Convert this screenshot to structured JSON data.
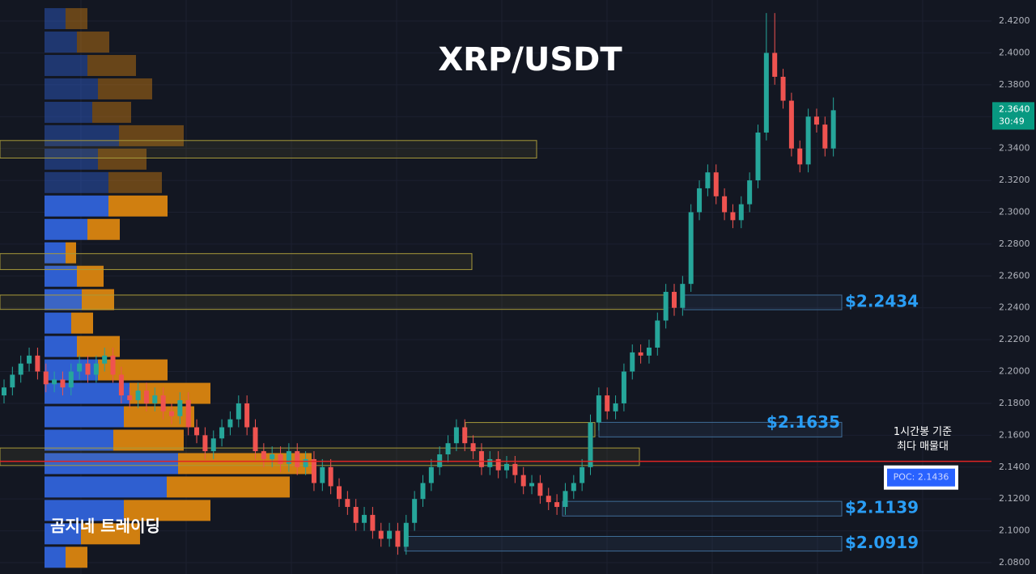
{
  "chart_data": {
    "type": "candlestick",
    "title": "XRP/USDT",
    "watermark": "곰지네 트레이딩",
    "up_color": "#26a69a",
    "down_color": "#ef5350",
    "ylim": [
      2.0729,
      2.4332
    ],
    "yticks": [
      {
        "value": 2.08,
        "label": "2.0800"
      },
      {
        "value": 2.1,
        "label": "2.1000"
      },
      {
        "value": 2.12,
        "label": "2.1200"
      },
      {
        "value": 2.14,
        "label": "2.1400"
      },
      {
        "value": 2.16,
        "label": "2.1600"
      },
      {
        "value": 2.18,
        "label": "2.1800"
      },
      {
        "value": 2.2,
        "label": "2.2000"
      },
      {
        "value": 2.22,
        "label": "2.2200"
      },
      {
        "value": 2.24,
        "label": "2.2400"
      },
      {
        "value": 2.26,
        "label": "2.2600"
      },
      {
        "value": 2.28,
        "label": "2.2800"
      },
      {
        "value": 2.3,
        "label": "2.3000"
      },
      {
        "value": 2.32,
        "label": "2.3200"
      },
      {
        "value": 2.34,
        "label": "2.3400"
      },
      {
        "value": 2.36,
        "label": "2.3600"
      },
      {
        "value": 2.38,
        "label": "2.3800"
      },
      {
        "value": 2.4,
        "label": "2.4000"
      },
      {
        "value": 2.42,
        "label": "2.4200"
      }
    ],
    "grid": true,
    "open": [
      2.185,
      2.19,
      2.198,
      2.205,
      2.21,
      2.2,
      2.192,
      2.195,
      2.19,
      2.2,
      2.205,
      2.198,
      2.205,
      2.21,
      2.198,
      2.185,
      2.182,
      2.188,
      2.18,
      2.185,
      2.175,
      2.172,
      2.182,
      2.165,
      2.16,
      2.15,
      2.158,
      2.165,
      2.17,
      2.18,
      2.165,
      2.15,
      2.145,
      2.148,
      2.142,
      2.15,
      2.14,
      2.145,
      2.13,
      2.14,
      2.128,
      2.12,
      2.115,
      2.105,
      2.11,
      2.1,
      2.095,
      2.1,
      2.09,
      2.105,
      2.12,
      2.13,
      2.14,
      2.148,
      2.155,
      2.165,
      2.155,
      2.15,
      2.14,
      2.145,
      2.138,
      2.142,
      2.135,
      2.128,
      2.13,
      2.122,
      2.118,
      2.115,
      2.125,
      2.13,
      2.14,
      2.168,
      2.185,
      2.175,
      2.18,
      2.2,
      2.212,
      2.21,
      2.215,
      2.232,
      2.25,
      2.24,
      2.255,
      2.3,
      2.315,
      2.325,
      2.31,
      2.3,
      2.295,
      2.305,
      2.32,
      2.35,
      2.4,
      2.385,
      2.37,
      2.34,
      2.33,
      2.36,
      2.355,
      2.34
    ],
    "high": [
      2.195,
      2.203,
      2.21,
      2.215,
      2.215,
      2.205,
      2.2,
      2.2,
      2.205,
      2.21,
      2.21,
      2.21,
      2.215,
      2.215,
      2.203,
      2.19,
      2.193,
      2.193,
      2.19,
      2.19,
      2.18,
      2.187,
      2.187,
      2.17,
      2.165,
      2.163,
      2.17,
      2.175,
      2.185,
      2.185,
      2.17,
      2.155,
      2.153,
      2.153,
      2.155,
      2.155,
      2.15,
      2.15,
      2.145,
      2.145,
      2.133,
      2.125,
      2.12,
      2.115,
      2.115,
      2.105,
      2.105,
      2.105,
      2.11,
      2.125,
      2.135,
      2.145,
      2.153,
      2.16,
      2.17,
      2.17,
      2.16,
      2.155,
      2.15,
      2.15,
      2.147,
      2.147,
      2.14,
      2.135,
      2.135,
      2.127,
      2.123,
      2.13,
      2.135,
      2.145,
      2.173,
      2.19,
      2.19,
      2.185,
      2.205,
      2.217,
      2.217,
      2.22,
      2.237,
      2.255,
      2.255,
      2.26,
      2.305,
      2.32,
      2.33,
      2.33,
      2.315,
      2.305,
      2.31,
      2.325,
      2.355,
      2.425,
      2.425,
      2.39,
      2.375,
      2.345,
      2.365,
      2.365,
      2.36,
      2.372
    ],
    "low": [
      2.18,
      2.185,
      2.193,
      2.2,
      2.195,
      2.187,
      2.187,
      2.185,
      2.185,
      2.195,
      2.193,
      2.193,
      2.2,
      2.193,
      2.18,
      2.177,
      2.177,
      2.175,
      2.175,
      2.17,
      2.167,
      2.167,
      2.16,
      2.155,
      2.145,
      2.145,
      2.153,
      2.16,
      2.165,
      2.16,
      2.145,
      2.14,
      2.14,
      2.137,
      2.137,
      2.135,
      2.135,
      2.125,
      2.125,
      2.123,
      2.115,
      2.11,
      2.1,
      2.1,
      2.095,
      2.09,
      2.09,
      2.085,
      2.085,
      2.1,
      2.115,
      2.125,
      2.135,
      2.143,
      2.15,
      2.15,
      2.145,
      2.135,
      2.135,
      2.133,
      2.133,
      2.13,
      2.123,
      2.123,
      2.117,
      2.113,
      2.11,
      2.11,
      2.12,
      2.125,
      2.135,
      2.163,
      2.17,
      2.17,
      2.175,
      2.195,
      2.205,
      2.205,
      2.21,
      2.227,
      2.235,
      2.235,
      2.25,
      2.295,
      2.31,
      2.305,
      2.295,
      2.29,
      2.29,
      2.3,
      2.315,
      2.345,
      2.38,
      2.365,
      2.335,
      2.325,
      2.325,
      2.35,
      2.335,
      2.335
    ],
    "close": [
      2.19,
      2.198,
      2.205,
      2.21,
      2.2,
      2.192,
      2.195,
      2.19,
      2.2,
      2.205,
      2.198,
      2.205,
      2.21,
      2.198,
      2.185,
      2.182,
      2.188,
      2.18,
      2.185,
      2.175,
      2.172,
      2.182,
      2.165,
      2.16,
      2.15,
      2.158,
      2.165,
      2.17,
      2.18,
      2.165,
      2.15,
      2.145,
      2.148,
      2.142,
      2.15,
      2.14,
      2.145,
      2.13,
      2.14,
      2.128,
      2.12,
      2.115,
      2.105,
      2.11,
      2.1,
      2.095,
      2.1,
      2.09,
      2.105,
      2.12,
      2.13,
      2.14,
      2.148,
      2.155,
      2.165,
      2.155,
      2.15,
      2.14,
      2.145,
      2.138,
      2.142,
      2.135,
      2.128,
      2.13,
      2.122,
      2.118,
      2.115,
      2.125,
      2.13,
      2.14,
      2.168,
      2.185,
      2.175,
      2.18,
      2.2,
      2.212,
      2.21,
      2.215,
      2.232,
      2.25,
      2.24,
      2.255,
      2.3,
      2.315,
      2.325,
      2.31,
      2.3,
      2.295,
      2.305,
      2.32,
      2.35,
      2.4,
      2.385,
      2.37,
      2.34,
      2.33,
      2.36,
      2.355,
      2.34,
      2.364
    ],
    "profile": {
      "buy_color": "#2f5fd0",
      "sell_color": "#d07f10",
      "price_levels": [
        2.4215,
        2.4068,
        2.3921,
        2.3774,
        2.3627,
        2.348,
        2.3333,
        2.3186,
        2.3039,
        2.2892,
        2.2745,
        2.2598,
        2.2451,
        2.2304,
        2.2157,
        2.201,
        2.1863,
        2.1716,
        2.1569,
        2.1422,
        2.1275,
        2.1128,
        2.0981,
        2.0834
      ],
      "buy": [
        26,
        40,
        53,
        66,
        59,
        92,
        66,
        79,
        79,
        53,
        26,
        40,
        46,
        33,
        40,
        66,
        105,
        98,
        85,
        165,
        151,
        98,
        45,
        26
      ],
      "sell": [
        27,
        40,
        60,
        67,
        48,
        80,
        60,
        66,
        73,
        40,
        13,
        33,
        40,
        27,
        53,
        86,
        100,
        87,
        87,
        165,
        152,
        107,
        73,
        27
      ],
      "highlighted": [
        false,
        false,
        false,
        false,
        false,
        false,
        false,
        false,
        true,
        true,
        true,
        true,
        true,
        true,
        true,
        true,
        true,
        true,
        true,
        true,
        true,
        true,
        true,
        true
      ]
    },
    "zones": [
      {
        "low": 2.334,
        "high": 2.345
      },
      {
        "low": 2.264,
        "high": 2.274
      },
      {
        "low": 2.239,
        "high": 2.248
      },
      {
        "low": 2.159,
        "high": 2.168
      },
      {
        "low": 2.141,
        "high": 2.152
      }
    ],
    "levels": [
      {
        "value": 2.2434,
        "label": "$2.2434"
      },
      {
        "value": 2.1635,
        "label": "$2.1635"
      },
      {
        "value": 2.1139,
        "label": "$2.1139"
      },
      {
        "value": 2.0919,
        "label": "$2.0919"
      }
    ],
    "poc": {
      "value": 2.1436,
      "label": "POC: 2.1436",
      "note": [
        "1시간봉 기준",
        "최다 매물대"
      ]
    },
    "last_price": {
      "value": 2.364,
      "label": "2.3640",
      "countdown": "30:49"
    }
  }
}
